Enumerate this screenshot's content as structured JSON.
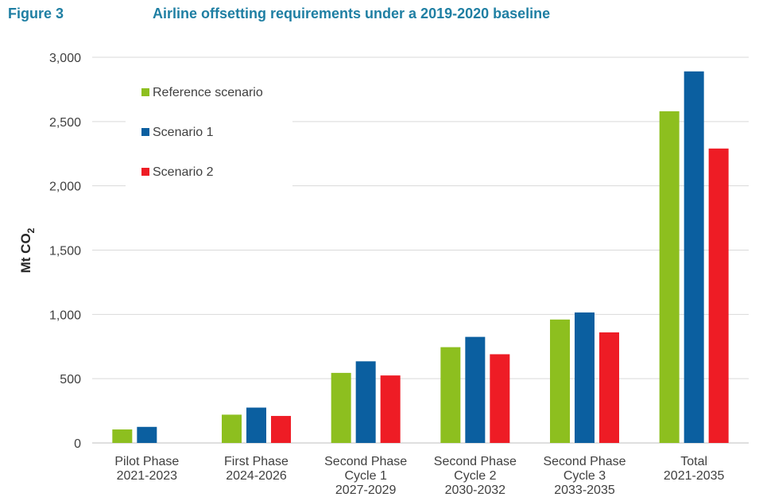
{
  "header": {
    "figure_label": "Figure 3",
    "title": "Airline offsetting requirements under a 2019-2020 baseline"
  },
  "chart_data": {
    "type": "bar",
    "title": "Airline offsetting requirements under a 2019-2020 baseline",
    "xlabel": "",
    "ylabel": "Mt CO",
    "ylabel_subscript": "2",
    "ylim": [
      0,
      3000
    ],
    "yticks": [
      0,
      500,
      1000,
      1500,
      2000,
      2500,
      3000
    ],
    "ytick_labels": [
      "0",
      "500",
      "1,000",
      "1,500",
      "2,000",
      "2,500",
      "3,000"
    ],
    "grid": true,
    "legend_position": "top-left",
    "categories": [
      [
        "Pilot Phase",
        "2021-2023"
      ],
      [
        "First Phase",
        "2024-2026"
      ],
      [
        "Second Phase",
        "Cycle 1",
        "2027-2029"
      ],
      [
        "Second Phase",
        "Cycle 2",
        "2030-2032"
      ],
      [
        "Second Phase",
        "Cycle 3",
        "2033-2035"
      ],
      [
        "Total",
        "2021-2035"
      ]
    ],
    "series": [
      {
        "name": "Reference scenario",
        "color": "#8dbf1f",
        "values": [
          105,
          220,
          545,
          745,
          960,
          2580
        ]
      },
      {
        "name": "Scenario 1",
        "color": "#0b5fa0",
        "values": [
          125,
          275,
          635,
          825,
          1015,
          2890
        ]
      },
      {
        "name": "Scenario 2",
        "color": "#ee1c25",
        "values": [
          null,
          210,
          525,
          690,
          860,
          2290
        ]
      }
    ]
  }
}
